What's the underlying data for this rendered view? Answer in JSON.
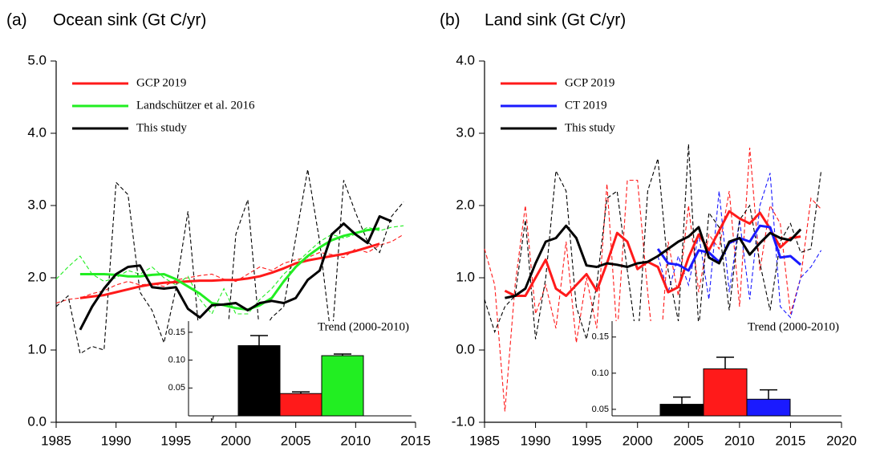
{
  "chart_data": [
    {
      "type": "line",
      "label": "(a)",
      "title": "Ocean sink (Gt C/yr)",
      "x": [
        1985,
        1986,
        1987,
        1988,
        1989,
        1990,
        1991,
        1992,
        1993,
        1994,
        1995,
        1996,
        1997,
        1998,
        1999,
        2000,
        2001,
        2002,
        2003,
        2004,
        2005,
        2006,
        2007,
        2008,
        2009,
        2010,
        2011,
        2012,
        2013,
        2014
      ],
      "xlim": [
        1985,
        2015
      ],
      "xticks": [
        1985,
        1990,
        1995,
        2000,
        2005,
        2010,
        2015
      ],
      "ylim": [
        0,
        5
      ],
      "yticks": [
        {
          "value": 0,
          "label": "0.0"
        },
        {
          "value": 1,
          "label": "1.0"
        },
        {
          "value": 2,
          "label": "2.0"
        },
        {
          "value": 3,
          "label": "3.0"
        },
        {
          "value": 4,
          "label": "4.0"
        },
        {
          "value": 5,
          "label": "5.0"
        }
      ],
      "series": [
        {
          "name": "GCP 2019",
          "color": "#ff1a1a",
          "values": [
            null,
            null,
            1.72,
            1.74,
            1.76,
            1.8,
            1.84,
            1.88,
            1.91,
            1.93,
            1.94,
            1.95,
            1.96,
            1.96,
            1.97,
            1.97,
            1.99,
            2.02,
            2.07,
            2.13,
            2.2,
            2.24,
            2.27,
            2.3,
            2.33,
            2.37,
            2.42,
            2.47,
            null,
            null
          ],
          "annual": [
            1.65,
            1.7,
            1.72,
            1.78,
            1.82,
            1.9,
            1.95,
            1.9,
            1.92,
            1.88,
            1.97,
            2.0,
            2.03,
            2.05,
            1.98,
            1.95,
            2.05,
            2.15,
            2.1,
            2.2,
            2.25,
            2.28,
            2.35,
            2.32,
            2.28,
            2.4,
            2.35,
            2.45,
            2.5,
            2.6
          ]
        },
        {
          "name": "Landschützer et al. 2016",
          "color": "#22ee22",
          "values": [
            null,
            null,
            2.05,
            2.05,
            2.05,
            2.04,
            2.02,
            2.02,
            2.04,
            2.05,
            1.98,
            1.88,
            1.78,
            1.65,
            1.62,
            1.58,
            1.56,
            1.62,
            1.72,
            1.95,
            2.15,
            2.3,
            2.42,
            2.52,
            2.58,
            2.62,
            2.66,
            2.68,
            null,
            null
          ],
          "annual": [
            1.98,
            2.15,
            2.3,
            2.05,
            1.95,
            2.0,
            2.1,
            2.05,
            2.15,
            2.0,
            1.9,
            2.02,
            1.7,
            1.5,
            1.85,
            1.5,
            1.5,
            1.7,
            1.85,
            2.05,
            2.2,
            2.35,
            2.5,
            2.6,
            2.55,
            2.6,
            2.7,
            2.65,
            2.7,
            2.72
          ]
        },
        {
          "name": "This study",
          "color": "#000000",
          "values": [
            null,
            null,
            1.28,
            1.6,
            1.85,
            2.05,
            2.15,
            2.17,
            1.87,
            1.85,
            1.87,
            1.57,
            1.45,
            1.62,
            1.63,
            1.65,
            1.55,
            1.65,
            1.68,
            1.65,
            1.72,
            1.97,
            2.1,
            2.6,
            2.75,
            2.6,
            2.48,
            2.85,
            2.78,
            null
          ],
          "annual": [
            1.6,
            1.75,
            0.95,
            1.05,
            1.0,
            3.32,
            3.15,
            1.8,
            1.55,
            1.1,
            1.85,
            2.92,
            1.1,
            0.0,
            0.6,
            2.6,
            3.08,
            1.2,
            1.45,
            1.6,
            2.55,
            3.5,
            2.5,
            1.1,
            3.35,
            2.9,
            2.5,
            2.35,
            2.85,
            3.05
          ]
        }
      ],
      "inset": {
        "type": "bar",
        "title": "Trend (2000-2010)",
        "ylim": [
          0,
          0.17
        ],
        "yticks": [
          0.05,
          {
            "value": 0.1,
            "label": "0.10"
          },
          0.15
        ],
        "series": [
          {
            "color": "#000000",
            "values": [
              0.126
            ],
            "errors": [
              0.018
            ]
          },
          {
            "color": "#ff1a1a",
            "values": [
              0.04
            ],
            "errors": [
              0.003
            ]
          },
          {
            "color": "#22ee22",
            "values": [
              0.108
            ],
            "errors": [
              0.003
            ]
          }
        ]
      }
    },
    {
      "type": "line",
      "label": "(b)",
      "title": "Land sink (Gt C/yr)",
      "x": [
        1985,
        1986,
        1987,
        1988,
        1989,
        1990,
        1991,
        1992,
        1993,
        1994,
        1995,
        1996,
        1997,
        1998,
        1999,
        2000,
        2001,
        2002,
        2003,
        2004,
        2005,
        2006,
        2007,
        2008,
        2009,
        2010,
        2011,
        2012,
        2013,
        2014,
        2015,
        2016,
        2017,
        2018
      ],
      "xlim": [
        1985,
        2020
      ],
      "xticks": [
        1985,
        1990,
        1995,
        2000,
        2005,
        2010,
        2015,
        2020
      ],
      "ylim": [
        -1,
        4
      ],
      "yticks": [
        {
          "value": -1,
          "label": "-1.0"
        },
        {
          "value": 0,
          "label": "0.0"
        },
        {
          "value": 1,
          "label": "1.0"
        },
        {
          "value": 2,
          "label": "2.0"
        },
        {
          "value": 3,
          "label": "3.0"
        },
        {
          "value": 4,
          "label": "4.0"
        }
      ],
      "series": [
        {
          "name": "GCP 2019",
          "color": "#ff1a1a",
          "values": [
            null,
            null,
            0.82,
            0.75,
            0.75,
            1.0,
            1.25,
            0.85,
            0.75,
            0.9,
            1.05,
            0.82,
            1.2,
            1.62,
            1.5,
            1.12,
            1.22,
            1.15,
            0.8,
            0.87,
            1.28,
            1.6,
            1.38,
            1.65,
            1.92,
            1.82,
            1.75,
            1.9,
            1.68,
            1.42,
            1.55,
            1.57,
            null,
            null
          ],
          "annual": [
            1.4,
            0.9,
            -0.85,
            0.9,
            2.0,
            0.5,
            0.9,
            0.3,
            1.5,
            0.1,
            1.0,
            0.3,
            2.3,
            0.2,
            2.35,
            2.35,
            0.8,
            -0.55,
            1.5,
            0.75,
            2.0,
            0.8,
            1.6,
            1.4,
            2.2,
            0.6,
            2.8,
            1.1,
            2.0,
            1.75,
            0.5,
            1.0,
            2.1,
            1.95
          ]
        },
        {
          "name": "CT 2019",
          "color": "#1a1aff",
          "values": [
            null,
            null,
            null,
            null,
            null,
            null,
            null,
            null,
            null,
            null,
            null,
            null,
            null,
            null,
            null,
            null,
            null,
            1.4,
            1.2,
            1.18,
            1.1,
            1.38,
            1.35,
            1.22,
            1.48,
            1.55,
            1.5,
            1.72,
            1.7,
            1.28,
            1.3,
            1.18,
            null,
            null
          ],
          "annual": [
            null,
            null,
            null,
            null,
            null,
            null,
            null,
            null,
            null,
            null,
            null,
            null,
            null,
            null,
            null,
            null,
            null,
            1.3,
            0.8,
            1.3,
            0.9,
            1.6,
            0.7,
            2.2,
            0.8,
            1.8,
            0.7,
            2.0,
            2.45,
            0.6,
            0.45,
            1.0,
            1.15,
            1.38
          ]
        },
        {
          "name": "This study",
          "color": "#000000",
          "values": [
            null,
            null,
            0.72,
            0.75,
            0.85,
            1.2,
            1.5,
            1.55,
            1.72,
            1.55,
            1.17,
            1.15,
            1.2,
            1.18,
            1.15,
            1.2,
            1.22,
            1.3,
            1.4,
            1.5,
            1.57,
            1.7,
            1.28,
            1.2,
            1.5,
            1.55,
            1.32,
            1.48,
            1.62,
            1.55,
            1.52,
            1.67,
            null,
            null
          ],
          "annual": [
            0.7,
            0.25,
            0.6,
            0.75,
            1.8,
            0.15,
            1.0,
            2.48,
            2.2,
            0.6,
            0.15,
            0.9,
            2.1,
            2.2,
            1.1,
            0.05,
            2.2,
            2.65,
            1.1,
            0.4,
            2.85,
            0.3,
            1.9,
            1.7,
            0.55,
            1.8,
            2.0,
            1.2,
            0.55,
            1.5,
            1.75,
            1.35,
            1.4,
            2.48
          ]
        }
      ],
      "inset": {
        "type": "bar",
        "title": "Trend (2000-2010)",
        "ylim": [
          0.041,
          0.172
        ],
        "yticks": [
          0.05,
          {
            "value": 0.1,
            "label": "0.10"
          },
          0.15
        ],
        "series": [
          {
            "color": "#000000",
            "values": [
              0.057
            ],
            "errors": [
              0.01
            ]
          },
          {
            "color": "#ff1a1a",
            "values": [
              0.106
            ],
            "errors": [
              0.016
            ]
          },
          {
            "color": "#1a1aff",
            "values": [
              0.064
            ],
            "errors": [
              0.013
            ]
          }
        ]
      }
    }
  ]
}
